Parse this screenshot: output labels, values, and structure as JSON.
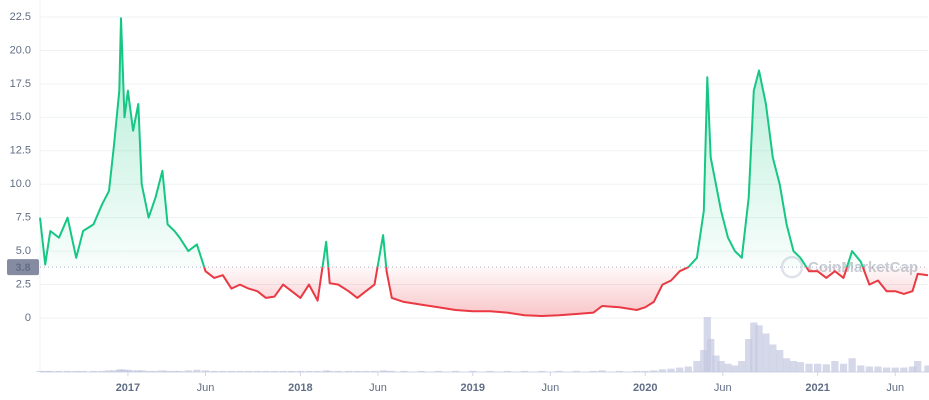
{
  "chart_data": {
    "type": "line",
    "x": [
      2016.49,
      2016.52,
      2016.55,
      2016.6,
      2016.65,
      2016.7,
      2016.74,
      2016.8,
      2016.85,
      2016.89,
      2016.92,
      2016.95,
      2016.96,
      2016.98,
      2017.0,
      2017.03,
      2017.06,
      2017.08,
      2017.12,
      2017.16,
      2017.2,
      2017.23,
      2017.27,
      2017.3,
      2017.35,
      2017.4,
      2017.45,
      2017.5,
      2017.55,
      2017.6,
      2017.65,
      2017.7,
      2017.75,
      2017.8,
      2017.85,
      2017.9,
      2017.95,
      2018.0,
      2018.05,
      2018.1,
      2018.15,
      2018.17,
      2018.22,
      2018.28,
      2018.33,
      2018.38,
      2018.43,
      2018.48,
      2018.5,
      2018.53,
      2018.6,
      2018.7,
      2018.8,
      2018.9,
      2019.0,
      2019.1,
      2019.2,
      2019.3,
      2019.4,
      2019.5,
      2019.6,
      2019.7,
      2019.75,
      2019.85,
      2019.95,
      2020.0,
      2020.05,
      2020.1,
      2020.15,
      2020.2,
      2020.25,
      2020.3,
      2020.34,
      2020.36,
      2020.38,
      2020.41,
      2020.44,
      2020.48,
      2020.52,
      2020.56,
      2020.6,
      2020.63,
      2020.66,
      2020.7,
      2020.74,
      2020.78,
      2020.82,
      2020.86,
      2020.9,
      2020.95,
      2021.0,
      2021.05,
      2021.1,
      2021.15,
      2021.2,
      2021.25,
      2021.3,
      2021.35,
      2021.4,
      2021.45,
      2021.5,
      2021.55,
      2021.58,
      2021.64
    ],
    "values": [
      7.5,
      4.0,
      6.5,
      6.0,
      7.5,
      4.5,
      6.5,
      7.0,
      8.5,
      9.5,
      13,
      17,
      22.4,
      15,
      17,
      14,
      16,
      10,
      7.5,
      9,
      11,
      7,
      6.5,
      6.0,
      5.0,
      5.5,
      3.5,
      3.0,
      3.2,
      2.2,
      2.5,
      2.2,
      2.0,
      1.5,
      1.6,
      2.5,
      2.0,
      1.5,
      2.5,
      1.3,
      5.7,
      2.6,
      2.5,
      2.0,
      1.5,
      2.0,
      2.5,
      6.2,
      3.5,
      1.5,
      1.2,
      1.0,
      0.8,
      0.6,
      0.5,
      0.5,
      0.4,
      0.2,
      0.15,
      0.2,
      0.3,
      0.4,
      0.9,
      0.8,
      0.6,
      0.8,
      1.2,
      2.5,
      2.8,
      3.5,
      3.8,
      4.5,
      8,
      18,
      12,
      10,
      8,
      6,
      5,
      4.5,
      9,
      17,
      18.5,
      16,
      12,
      10,
      7,
      5,
      4.5,
      3.5,
      3.5,
      3.0,
      3.5,
      3.0,
      5.0,
      4.2,
      2.5,
      2.8,
      2.0,
      2.0,
      1.8,
      2.0,
      3.3,
      3.2
    ],
    "volume": [
      2,
      2,
      2,
      2,
      2,
      2,
      2,
      2,
      2,
      3,
      3,
      4,
      5,
      4,
      4,
      3,
      3,
      3,
      2,
      2,
      3,
      2,
      2,
      2,
      3,
      4,
      3,
      2,
      2,
      2,
      2,
      2,
      2,
      2,
      2,
      2,
      2,
      2,
      2,
      2,
      3,
      2,
      2,
      2,
      2,
      2,
      2,
      3,
      2,
      2,
      2,
      2,
      2,
      2,
      2,
      2,
      2,
      2,
      2,
      2,
      2,
      2,
      3,
      2,
      2,
      2,
      3,
      5,
      6,
      8,
      10,
      20,
      40,
      100,
      60,
      30,
      20,
      15,
      12,
      20,
      60,
      90,
      85,
      70,
      50,
      40,
      25,
      20,
      18,
      15,
      15,
      14,
      20,
      15,
      25,
      12,
      10,
      10,
      8,
      8,
      8,
      10,
      20,
      12
    ],
    "vlim": [
      0,
      100
    ],
    "baseline": 3.8,
    "up_color": "#16c784",
    "down_color": "#ea3943",
    "volume_color": "#c3c7e0",
    "xlim": [
      2016.49,
      2021.64
    ],
    "xticks": [
      {
        "value": 2017,
        "label": "2017"
      },
      {
        "value": 2017.45,
        "label": "Jun"
      },
      {
        "value": 2018,
        "label": "2018"
      },
      {
        "value": 2018.45,
        "label": "Jun"
      },
      {
        "value": 2019,
        "label": "2019"
      },
      {
        "value": 2019.45,
        "label": "Jun"
      },
      {
        "value": 2020,
        "label": "2020"
      },
      {
        "value": 2020.45,
        "label": "Jun"
      },
      {
        "value": 2021,
        "label": "2021"
      },
      {
        "value": 2021.45,
        "label": "Jun"
      }
    ],
    "ylim": [
      0,
      22.5
    ],
    "yticks": [
      0,
      2.5,
      {
        "value": 5,
        "label": "5.0"
      },
      7.5,
      {
        "value": 10,
        "label": "10.0"
      },
      12.5,
      {
        "value": 15,
        "label": "15.0"
      },
      17.5,
      {
        "value": 20,
        "label": "20.0"
      },
      22.5
    ],
    "grid": true,
    "watermark": "CoinMarketCap"
  }
}
